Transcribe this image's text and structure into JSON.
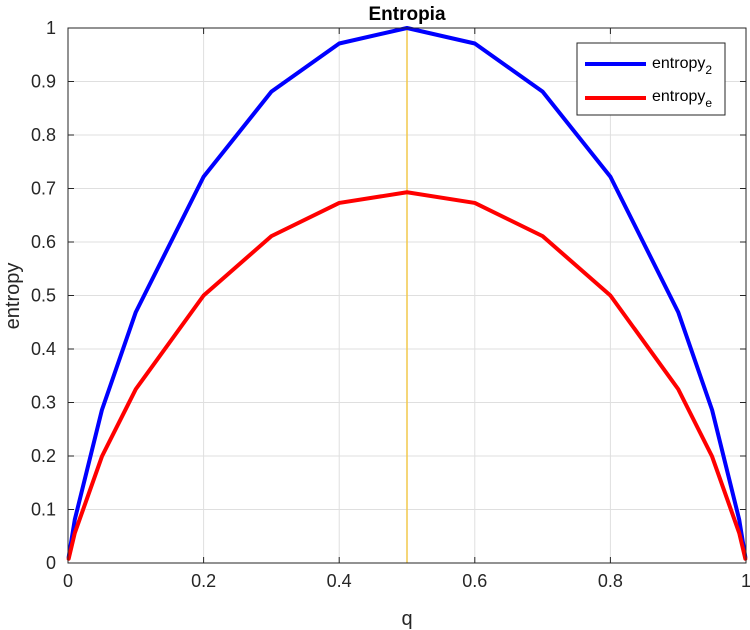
{
  "chart_data": {
    "type": "line",
    "title": "Entropia",
    "xlabel": "q",
    "ylabel": "entropy",
    "xlim": [
      0,
      1
    ],
    "ylim": [
      0,
      1
    ],
    "grid": true,
    "legend_position": "top-right",
    "x_ticks": [
      0,
      0.2,
      0.4,
      0.6,
      0.8,
      1
    ],
    "x_tick_labels": [
      "0",
      "0.2",
      "0.4",
      "0.6",
      "0.8",
      "1"
    ],
    "y_ticks": [
      0,
      0.1,
      0.2,
      0.3,
      0.4,
      0.5,
      0.6,
      0.7,
      0.8,
      0.9,
      1
    ],
    "y_tick_labels": [
      "0",
      "0.1",
      "0.2",
      "0.3",
      "0.4",
      "0.5",
      "0.6",
      "0.7",
      "0.8",
      "0.9",
      "1"
    ],
    "series": [
      {
        "base": "entropy",
        "subscript": "2",
        "color": "#0000ff",
        "x": [
          0.001,
          0.01,
          0.05,
          0.1,
          0.2,
          0.3,
          0.4,
          0.5,
          0.6,
          0.7,
          0.8,
          0.9,
          0.95,
          0.99,
          0.999
        ],
        "y": [
          0.011,
          0.081,
          0.286,
          0.469,
          0.722,
          0.881,
          0.971,
          1.0,
          0.971,
          0.881,
          0.722,
          0.469,
          0.286,
          0.081,
          0.011
        ]
      },
      {
        "base": "entropy",
        "subscript": "e",
        "color": "#ff0000",
        "x": [
          0.001,
          0.01,
          0.05,
          0.1,
          0.2,
          0.3,
          0.4,
          0.5,
          0.6,
          0.7,
          0.8,
          0.9,
          0.95,
          0.99,
          0.999
        ],
        "y": [
          0.008,
          0.056,
          0.199,
          0.325,
          0.5,
          0.611,
          0.673,
          0.693,
          0.673,
          0.611,
          0.5,
          0.325,
          0.199,
          0.056,
          0.008
        ]
      }
    ],
    "reference_line": {
      "orientation": "vertical",
      "x": 0.5,
      "color": "#f2c84b"
    }
  }
}
